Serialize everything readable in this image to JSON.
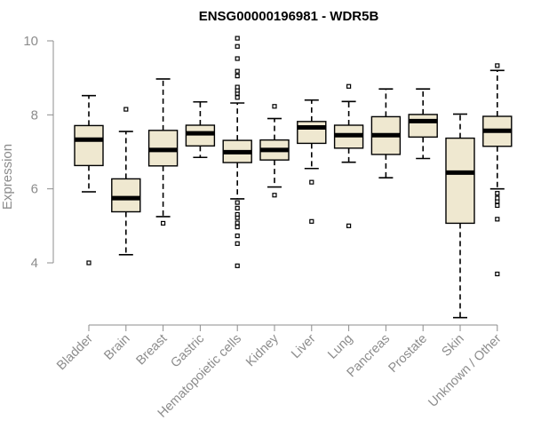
{
  "chart_data": {
    "type": "boxplot",
    "title": "ENSG00000196981 - WDR5B",
    "xlabel": "",
    "ylabel": "Expression",
    "ylim": [
      2.4,
      10.2
    ],
    "yticks": [
      4,
      6,
      8,
      10
    ],
    "box_fill": "#efe8d0",
    "box_stroke": "#000000",
    "axis_color": "#8c8c8c",
    "categories": [
      "Bladder",
      "Brain",
      "Breast",
      "Gastric",
      "Hematopoietic cells",
      "Kidney",
      "Liver",
      "Lung",
      "Pancreas",
      "Prostate",
      "Skin",
      "Unknown / Other"
    ],
    "boxes": [
      {
        "name": "Bladder",
        "whisker_low": 5.92,
        "q1": 6.63,
        "median": 7.33,
        "q3": 7.71,
        "whisker_high": 8.52,
        "outliers": [
          4.0
        ]
      },
      {
        "name": "Brain",
        "whisker_low": 4.22,
        "q1": 5.38,
        "median": 5.75,
        "q3": 6.27,
        "whisker_high": 7.55,
        "outliers": [
          8.15
        ]
      },
      {
        "name": "Breast",
        "whisker_low": 5.25,
        "q1": 6.62,
        "median": 7.05,
        "q3": 7.58,
        "whisker_high": 8.97,
        "outliers": [
          5.07
        ]
      },
      {
        "name": "Gastric",
        "whisker_low": 6.85,
        "q1": 7.16,
        "median": 7.5,
        "q3": 7.72,
        "whisker_high": 8.35,
        "outliers": []
      },
      {
        "name": "Hematopoietic cells",
        "whisker_low": 5.73,
        "q1": 6.71,
        "median": 6.99,
        "q3": 7.31,
        "whisker_high": 8.32,
        "outliers": [
          3.92,
          4.52,
          4.73,
          4.97,
          5.08,
          5.22,
          5.31,
          5.48,
          5.63,
          8.47,
          8.58,
          8.66,
          8.75,
          9.05,
          9.18,
          9.52,
          9.85,
          10.07
        ]
      },
      {
        "name": "Kidney",
        "whisker_low": 6.05,
        "q1": 6.78,
        "median": 7.05,
        "q3": 7.32,
        "whisker_high": 7.9,
        "outliers": [
          5.83,
          8.23
        ]
      },
      {
        "name": "Liver",
        "whisker_low": 6.55,
        "q1": 7.23,
        "median": 7.66,
        "q3": 7.82,
        "whisker_high": 8.4,
        "outliers": [
          5.12,
          6.18
        ]
      },
      {
        "name": "Lung",
        "whisker_low": 6.72,
        "q1": 7.1,
        "median": 7.45,
        "q3": 7.72,
        "whisker_high": 8.36,
        "outliers": [
          5.0,
          8.77
        ]
      },
      {
        "name": "Pancreas",
        "whisker_low": 6.3,
        "q1": 6.93,
        "median": 7.45,
        "q3": 7.95,
        "whisker_high": 8.7,
        "outliers": []
      },
      {
        "name": "Prostate",
        "whisker_low": 6.82,
        "q1": 7.4,
        "median": 7.83,
        "q3": 8.01,
        "whisker_high": 8.7,
        "outliers": []
      },
      {
        "name": "Skin",
        "whisker_low": 2.52,
        "q1": 5.07,
        "median": 6.44,
        "q3": 7.37,
        "whisker_high": 8.02,
        "outliers": []
      },
      {
        "name": "Unknown / Other",
        "whisker_low": 6.0,
        "q1": 7.15,
        "median": 7.57,
        "q3": 7.96,
        "whisker_high": 9.2,
        "outliers": [
          3.7,
          5.18,
          5.55,
          5.66,
          5.75,
          5.88,
          9.33
        ]
      }
    ]
  }
}
